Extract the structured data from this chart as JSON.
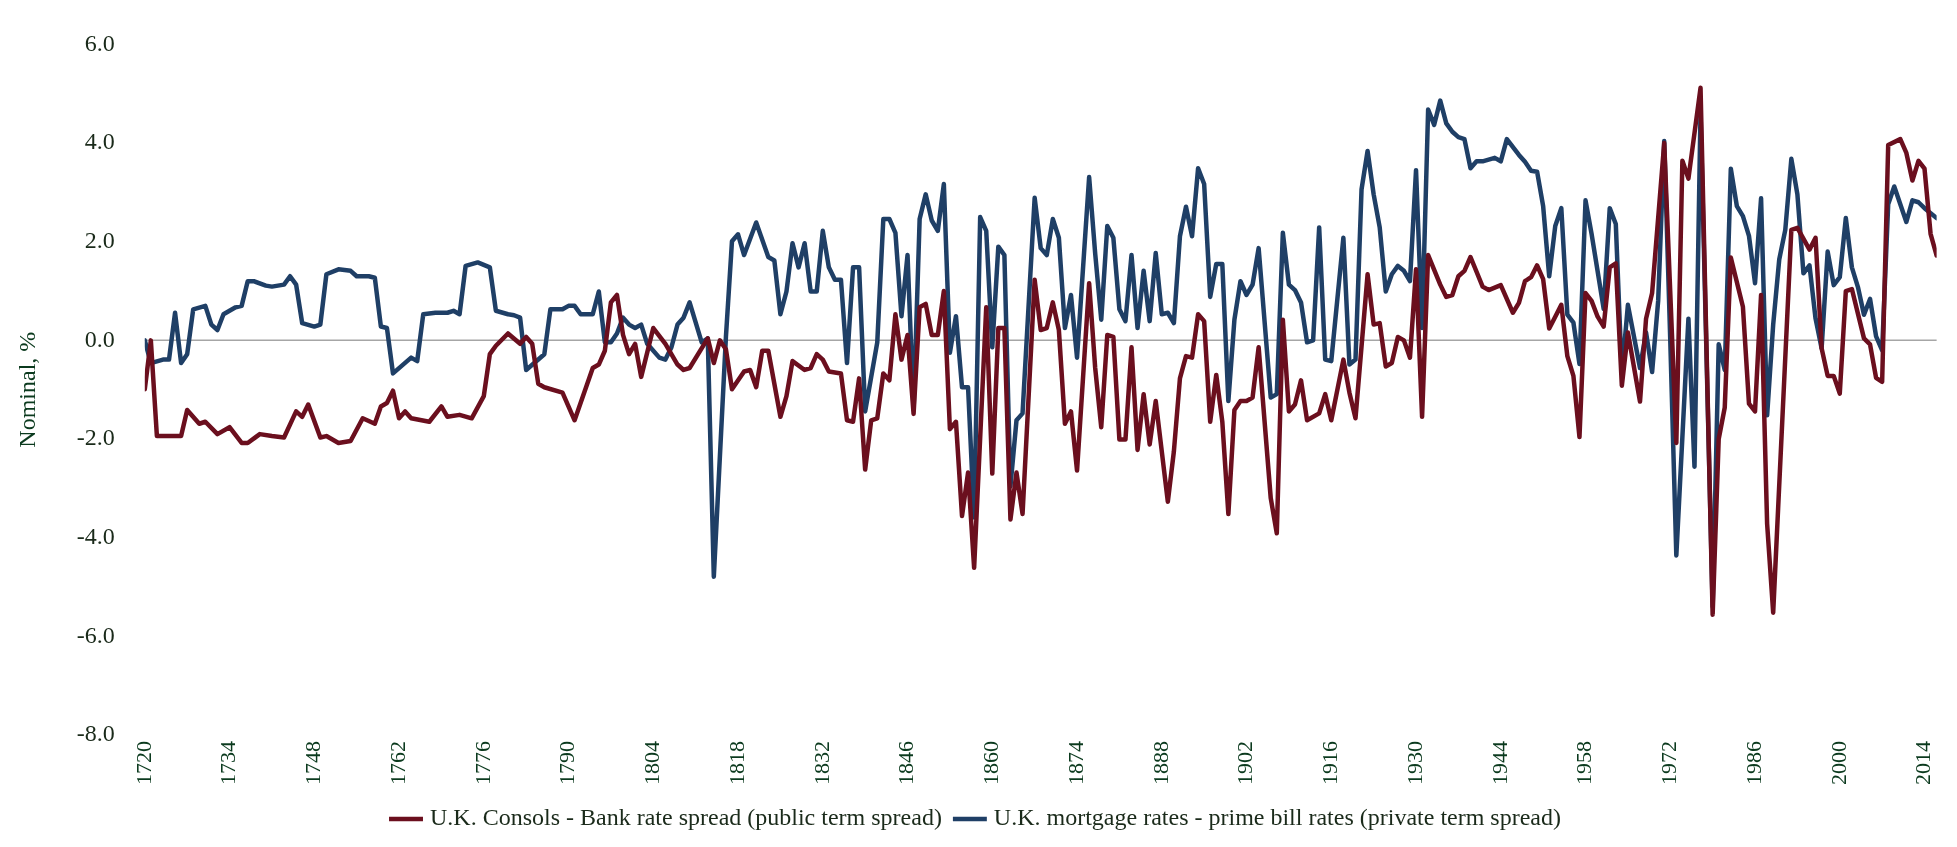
{
  "chart_data": {
    "type": "line",
    "ylabel": "Nominal, %",
    "xlim": [
      1720,
      2016
    ],
    "ylim": [
      -8,
      6
    ],
    "xticks": [
      1720,
      1734,
      1748,
      1762,
      1776,
      1790,
      1804,
      1818,
      1832,
      1846,
      1860,
      1874,
      1888,
      1902,
      1916,
      1930,
      1944,
      1958,
      1972,
      1986,
      2000,
      2014
    ],
    "yticks": [
      {
        "value": -8,
        "label": "-8.0"
      },
      {
        "value": -6,
        "label": "-6.0"
      },
      {
        "value": -4,
        "label": "-4.0"
      },
      {
        "value": -2,
        "label": "-2.0"
      },
      {
        "value": 0,
        "label": "0.0"
      },
      {
        "value": 2,
        "label": "2.0"
      },
      {
        "value": 4,
        "label": "4.0"
      },
      {
        "value": 6,
        "label": "6.0"
      }
    ],
    "grid": false,
    "ref_lines": [
      {
        "axis": "y",
        "value": 0,
        "color": "#a6a6a6"
      }
    ],
    "legend": "bottom",
    "marker": "none",
    "line_style": "solid",
    "series": [
      {
        "name": "U.K. Consols - Bank rate spread (public term spread)",
        "color": "#6b0f1e",
        "x": [
          1720,
          1721,
          1722,
          1726,
          1727,
          1729,
          1730,
          1732,
          1734,
          1736,
          1737,
          1739,
          1741,
          1743,
          1745,
          1746,
          1747,
          1749,
          1750,
          1752,
          1754,
          1756,
          1758,
          1759,
          1760,
          1761,
          1762,
          1763,
          1764,
          1767,
          1769,
          1770,
          1772,
          1774,
          1776,
          1777,
          1778,
          1780,
          1782,
          1783,
          1784,
          1785,
          1786,
          1789,
          1791,
          1794,
          1795,
          1796,
          1797,
          1798,
          1799,
          1800,
          1801,
          1802,
          1804,
          1806,
          1808,
          1809,
          1810,
          1813,
          1814,
          1815,
          1816,
          1817,
          1819,
          1820,
          1821,
          1822,
          1823,
          1825,
          1826,
          1827,
          1829,
          1830,
          1831,
          1832,
          1833,
          1835,
          1836,
          1837,
          1838,
          1839,
          1840,
          1841,
          1842,
          1843,
          1844,
          1845,
          1846,
          1847,
          1848,
          1849,
          1850,
          1851,
          1852,
          1853,
          1854,
          1855,
          1856,
          1857,
          1859,
          1860,
          1861,
          1862,
          1863,
          1864,
          1865,
          1867,
          1868,
          1869,
          1870,
          1871,
          1872,
          1873,
          1874,
          1876,
          1877,
          1878,
          1879,
          1880,
          1881,
          1882,
          1883,
          1884,
          1885,
          1886,
          1887,
          1889,
          1890,
          1891,
          1892,
          1893,
          1894,
          1895,
          1896,
          1897,
          1898,
          1899,
          1900,
          1901,
          1902,
          1903,
          1904,
          1906,
          1907,
          1908,
          1909,
          1910,
          1911,
          1912,
          1914,
          1915,
          1916,
          1918,
          1919,
          1920,
          1922,
          1923,
          1924,
          1925,
          1926,
          1927,
          1928,
          1929,
          1930,
          1931,
          1932,
          1934,
          1935,
          1936,
          1937,
          1938,
          1939,
          1941,
          1942,
          1944,
          1946,
          1947,
          1948,
          1949,
          1950,
          1951,
          1952,
          1953,
          1954,
          1955,
          1956,
          1957,
          1958,
          1959,
          1960,
          1961,
          1962,
          1963,
          1964,
          1965,
          1967,
          1968,
          1969,
          1971,
          1973,
          1974,
          1975,
          1977,
          1979,
          1980,
          1981,
          1982,
          1984,
          1985,
          1986,
          1987,
          1988,
          1989,
          1992,
          1993,
          1995,
          1996,
          1997,
          1998,
          1999,
          2000,
          2001,
          2002,
          2004,
          2005,
          2006,
          2007,
          2008,
          2010,
          2011,
          2012,
          2013,
          2014,
          2015,
          2016
        ],
        "values": [
          -0.99,
          0.0,
          -1.94,
          -1.94,
          -1.41,
          -1.69,
          -1.65,
          -1.9,
          -1.76,
          -2.08,
          -2.08,
          -1.9,
          -1.94,
          -1.97,
          -1.44,
          -1.55,
          -1.3,
          -1.97,
          -1.94,
          -2.08,
          -2.04,
          -1.58,
          -1.69,
          -1.34,
          -1.27,
          -1.02,
          -1.58,
          -1.44,
          -1.58,
          -1.65,
          -1.34,
          -1.55,
          -1.51,
          -1.58,
          -1.13,
          -0.28,
          -0.11,
          0.14,
          -0.07,
          0.07,
          -0.07,
          -0.88,
          -0.95,
          -1.06,
          -1.62,
          -0.56,
          -0.49,
          -0.21,
          0.77,
          0.92,
          0.11,
          -0.28,
          -0.07,
          -0.74,
          0.25,
          -0.07,
          -0.49,
          -0.6,
          -0.56,
          0.04,
          -0.46,
          0.0,
          -0.18,
          -0.99,
          -0.63,
          -0.6,
          -0.95,
          -0.21,
          -0.21,
          -1.55,
          -1.13,
          -0.42,
          -0.6,
          -0.56,
          -0.28,
          -0.39,
          -0.63,
          -0.67,
          -1.62,
          -1.65,
          -0.77,
          -2.62,
          -1.62,
          -1.58,
          -0.67,
          -0.81,
          0.53,
          -0.39,
          0.11,
          -1.49,
          0.67,
          0.74,
          0.11,
          0.11,
          1.0,
          -1.8,
          -1.65,
          -3.56,
          -2.68,
          -4.61,
          0.67,
          -2.7,
          0.25,
          0.25,
          -3.63,
          -2.68,
          -3.52,
          1.23,
          0.21,
          0.25,
          0.77,
          0.21,
          -1.69,
          -1.44,
          -2.64,
          1.16,
          -0.56,
          -1.76,
          0.11,
          0.07,
          -2.01,
          -2.01,
          -0.14,
          -2.22,
          -1.09,
          -2.11,
          -1.23,
          -3.27,
          -2.25,
          -0.77,
          -0.32,
          -0.35,
          0.53,
          0.39,
          -1.65,
          -0.7,
          -1.65,
          -3.52,
          -1.41,
          -1.23,
          -1.23,
          -1.16,
          -0.14,
          -3.2,
          -3.91,
          0.42,
          -1.44,
          -1.3,
          -0.81,
          -1.62,
          -1.48,
          -1.09,
          -1.62,
          -0.39,
          -1.06,
          -1.58,
          1.34,
          0.32,
          0.35,
          -0.53,
          -0.46,
          0.07,
          0.0,
          -0.35,
          1.44,
          -1.55,
          1.73,
          1.13,
          0.88,
          0.92,
          1.3,
          1.41,
          1.69,
          1.09,
          1.02,
          1.12,
          0.56,
          0.76,
          1.2,
          1.28,
          1.52,
          1.24,
          0.24,
          0.48,
          0.72,
          -0.32,
          -0.72,
          -1.96,
          0.96,
          0.8,
          0.48,
          0.28,
          1.48,
          1.56,
          -0.92,
          0.16,
          -1.24,
          0.44,
          0.96,
          4.0,
          -2.08,
          3.64,
          3.28,
          5.12,
          -5.56,
          -2.0,
          -1.36,
          1.68,
          0.68,
          -1.28,
          -1.44,
          0.92,
          -3.72,
          -5.52,
          2.24,
          2.28,
          1.84,
          2.08,
          -0.16,
          -0.72,
          -0.72,
          -1.08,
          1.0,
          1.04,
          0.04,
          -0.08,
          -0.76,
          -0.84,
          3.96,
          4.08,
          3.8,
          3.24,
          3.64,
          3.48,
          2.16,
          1.72
        ]
      },
      {
        "name": "U.K. mortgage rates - prime bill rates (private term spread)",
        "color": "#1f3f66",
        "x": [
          1720,
          1721,
          1723,
          1724,
          1725,
          1726,
          1727,
          1728,
          1730,
          1731,
          1732,
          1733,
          1735,
          1736,
          1737,
          1738,
          1740,
          1741,
          1743,
          1744,
          1745,
          1746,
          1748,
          1749,
          1750,
          1752,
          1754,
          1755,
          1757,
          1758,
          1759,
          1760,
          1761,
          1764,
          1765,
          1766,
          1768,
          1770,
          1771,
          1772,
          1773,
          1775,
          1777,
          1778,
          1780,
          1781,
          1782,
          1783,
          1786,
          1787,
          1789,
          1790,
          1791,
          1792,
          1794,
          1795,
          1796,
          1797,
          1798,
          1799,
          1800,
          1801,
          1802,
          1803,
          1805,
          1806,
          1807,
          1808,
          1809,
          1810,
          1812,
          1813,
          1814,
          1816,
          1817,
          1818,
          1819,
          1821,
          1823,
          1824,
          1825,
          1826,
          1827,
          1828,
          1829,
          1830,
          1831,
          1832,
          1833,
          1834,
          1835,
          1836,
          1837,
          1838,
          1839,
          1841,
          1842,
          1843,
          1844,
          1845,
          1846,
          1847,
          1848,
          1849,
          1850,
          1851,
          1852,
          1853,
          1854,
          1855,
          1856,
          1857,
          1858,
          1859,
          1860,
          1861,
          1862,
          1863,
          1864,
          1865,
          1867,
          1868,
          1869,
          1870,
          1871,
          1872,
          1873,
          1874,
          1876,
          1877,
          1878,
          1879,
          1880,
          1881,
          1882,
          1883,
          1884,
          1885,
          1886,
          1887,
          1888,
          1889,
          1890,
          1891,
          1892,
          1893,
          1894,
          1895,
          1896,
          1897,
          1898,
          1899,
          1900,
          1901,
          1902,
          1903,
          1904,
          1906,
          1907,
          1908,
          1909,
          1910,
          1911,
          1912,
          1913,
          1914,
          1915,
          1916,
          1918,
          1919,
          1920,
          1921,
          1922,
          1923,
          1924,
          1925,
          1926,
          1927,
          1928,
          1929,
          1930,
          1931,
          1932,
          1933,
          1934,
          1935,
          1936,
          1937,
          1938,
          1939,
          1940,
          1941,
          1943,
          1944,
          1945,
          1947,
          1948,
          1949,
          1950,
          1951,
          1952,
          1953,
          1954,
          1955,
          1956,
          1957,
          1958,
          1959,
          1961,
          1962,
          1963,
          1964,
          1965,
          1967,
          1968,
          1969,
          1970,
          1971,
          1972,
          1973,
          1975,
          1976,
          1977,
          1979,
          1980,
          1981,
          1982,
          1983,
          1984,
          1985,
          1986,
          1987,
          1988,
          1989,
          1990,
          1991,
          1992,
          1993,
          1994,
          1995,
          1996,
          1997,
          1998,
          1999,
          2000,
          2001,
          2002,
          2003,
          2004,
          2005,
          2006,
          2007,
          2008,
          2009,
          2011,
          2012,
          2013,
          2014,
          2016
        ],
        "values": [
          0.0,
          -0.46,
          -0.39,
          -0.39,
          0.56,
          -0.46,
          -0.28,
          0.63,
          0.7,
          0.32,
          0.21,
          0.53,
          0.67,
          0.7,
          1.2,
          1.2,
          1.11,
          1.09,
          1.13,
          1.3,
          1.13,
          0.35,
          0.28,
          0.32,
          1.34,
          1.44,
          1.41,
          1.3,
          1.3,
          1.27,
          0.28,
          0.25,
          -0.67,
          -0.35,
          -0.42,
          0.53,
          0.56,
          0.56,
          0.6,
          0.53,
          1.51,
          1.58,
          1.48,
          0.6,
          0.53,
          0.51,
          0.46,
          -0.6,
          -0.28,
          0.63,
          0.63,
          0.7,
          0.7,
          0.53,
          0.53,
          0.99,
          -0.04,
          -0.04,
          0.14,
          0.46,
          0.32,
          0.25,
          0.32,
          -0.07,
          -0.35,
          -0.39,
          -0.14,
          0.32,
          0.46,
          0.77,
          -0.04,
          0.04,
          -4.79,
          0.07,
          2.01,
          2.15,
          1.73,
          2.39,
          1.69,
          1.62,
          0.53,
          0.99,
          1.97,
          1.48,
          1.97,
          0.99,
          0.99,
          2.22,
          1.48,
          1.23,
          1.23,
          -0.46,
          1.48,
          1.48,
          -1.44,
          -0.04,
          2.46,
          2.46,
          2.18,
          0.49,
          1.73,
          -1.41,
          2.46,
          2.96,
          2.43,
          2.22,
          3.17,
          -0.25,
          0.49,
          -0.95,
          -0.95,
          -3.59,
          2.5,
          2.22,
          -0.14,
          1.9,
          1.73,
          -2.96,
          -1.62,
          -1.48,
          2.89,
          1.87,
          1.73,
          2.46,
          2.08,
          0.25,
          0.92,
          -0.35,
          3.31,
          1.76,
          0.42,
          2.32,
          2.08,
          0.63,
          0.39,
          1.73,
          0.25,
          1.41,
          0.39,
          1.77,
          0.53,
          0.56,
          0.35,
          2.11,
          2.71,
          2.11,
          3.49,
          3.17,
          0.88,
          1.55,
          1.55,
          -1.23,
          0.42,
          1.2,
          0.92,
          1.13,
          1.87,
          -1.16,
          -1.09,
          2.18,
          1.13,
          1.02,
          0.77,
          -0.04,
          0.0,
          2.29,
          -0.39,
          -0.42,
          2.08,
          -0.49,
          -0.39,
          3.06,
          3.84,
          2.96,
          2.29,
          0.99,
          1.34,
          1.51,
          1.41,
          1.2,
          3.45,
          0.25,
          4.68,
          4.37,
          4.86,
          4.4,
          4.23,
          4.12,
          4.08,
          3.49,
          3.63,
          3.63,
          3.7,
          3.63,
          4.08,
          3.76,
          3.62,
          3.44,
          3.42,
          2.72,
          1.3,
          2.32,
          2.68,
          0.52,
          0.36,
          -0.48,
          2.84,
          2.16,
          0.64,
          2.68,
          2.36,
          -0.68,
          0.72,
          -0.56,
          0.16,
          -0.64,
          0.8,
          4.04,
          0.0,
          -4.36,
          0.44,
          -2.56,
          4.64,
          -5.4,
          -0.08,
          -0.6,
          3.48,
          2.72,
          2.52,
          2.12,
          1.16,
          2.88,
          -1.52,
          0.32,
          1.64,
          2.24,
          3.68,
          2.96,
          1.36,
          1.52,
          0.44,
          -0.16,
          1.8,
          1.12,
          1.28,
          2.48,
          1.48,
          1.08,
          0.52,
          0.84,
          0.08,
          -0.2,
          2.76,
          3.12,
          2.4,
          2.84,
          2.8,
          2.68,
          2.48
        ]
      }
    ]
  }
}
